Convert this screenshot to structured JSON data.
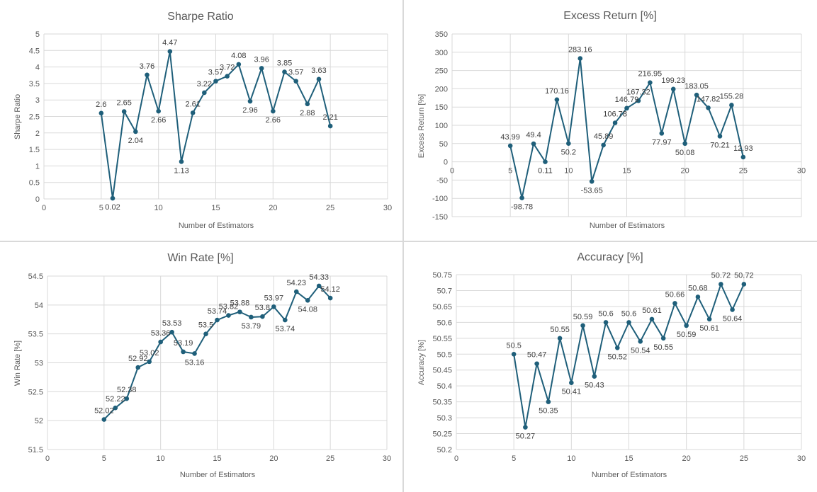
{
  "chart_data": [
    {
      "type": "line",
      "title": "Sharpe Ratio",
      "xlabel": "Number of Estimators",
      "ylabel": "Sharpe Ratio",
      "xlim": [
        0,
        30
      ],
      "ylim": [
        0,
        5
      ],
      "xticks": [
        "0",
        "5",
        "10",
        "15",
        "20",
        "25",
        "30"
      ],
      "yticks": [
        "0",
        "0.5",
        "1",
        "1.5",
        "2",
        "2.5",
        "3",
        "3.5",
        "4",
        "4.5",
        "5"
      ],
      "grid": true,
      "color": "#1f5f7a",
      "series": [
        {
          "x": [
            5,
            6,
            7,
            8,
            9,
            10,
            11,
            12,
            13,
            14,
            15,
            16,
            17,
            18,
            19,
            20,
            21,
            22,
            23,
            24,
            25
          ],
          "values": [
            2.6,
            0.02,
            2.65,
            2.04,
            3.76,
            2.66,
            4.47,
            1.13,
            2.61,
            3.22,
            3.57,
            3.72,
            4.08,
            2.96,
            3.96,
            2.66,
            3.85,
            3.57,
            2.88,
            3.63,
            2.21
          ],
          "labels": [
            "2.6",
            "0.02",
            "2.65",
            "2.04",
            "3.76",
            "2.66",
            "4.47",
            "1.13",
            "2.61",
            "3.22",
            "3.57",
            "3.72",
            "4.08",
            "2.96",
            "3.96",
            "2.66",
            "3.85",
            "3.57",
            "2.88",
            "3.63",
            "2.21"
          ]
        }
      ]
    },
    {
      "type": "line",
      "title": "Excess Return [%]",
      "xlabel": "Number of Estimators",
      "ylabel": "Excess Return [%]",
      "xlim": [
        0,
        30
      ],
      "ylim": [
        -150,
        350
      ],
      "xticks": [
        "0",
        "5",
        "10",
        "15",
        "20",
        "25",
        "30"
      ],
      "yticks": [
        "-150",
        "-100",
        "-50",
        "0",
        "50",
        "100",
        "150",
        "200",
        "250",
        "300",
        "350"
      ],
      "grid": true,
      "color": "#1f5f7a",
      "series": [
        {
          "x": [
            5,
            6,
            7,
            8,
            9,
            10,
            11,
            12,
            13,
            14,
            15,
            16,
            17,
            18,
            19,
            20,
            21,
            22,
            23,
            24,
            25
          ],
          "values": [
            43.99,
            -98.78,
            49.4,
            0.11,
            170.16,
            50.2,
            283.16,
            -53.65,
            45.89,
            106.78,
            146.79,
            167.32,
            216.95,
            77.97,
            199.23,
            50.08,
            183.05,
            147.82,
            70.21,
            155.28,
            12.93
          ],
          "labels": [
            "43.99",
            "-98.78",
            "49.4",
            "0.11",
            "170.16",
            "50.2",
            "283.16",
            "-53.65",
            "45.89",
            "106.78",
            "146.79",
            "167.32",
            "216.95",
            "77.97",
            "199.23",
            "50.08",
            "183.05",
            "147.82",
            "70.21",
            "155.28",
            "12.93"
          ]
        }
      ]
    },
    {
      "type": "line",
      "title": "Win Rate [%]",
      "xlabel": "Number of Estimators",
      "ylabel": "Win Rate [%]",
      "xlim": [
        0,
        30
      ],
      "ylim": [
        51.5,
        54.5
      ],
      "xticks": [
        "0",
        "5",
        "10",
        "15",
        "20",
        "25",
        "30"
      ],
      "yticks": [
        "51.5",
        "52",
        "52.5",
        "53",
        "53.5",
        "54",
        "54.5"
      ],
      "grid": true,
      "color": "#1f5f7a",
      "series": [
        {
          "x": [
            5,
            6,
            7,
            8,
            9,
            10,
            11,
            12,
            13,
            14,
            15,
            16,
            17,
            18,
            19,
            20,
            21,
            22,
            23,
            24,
            25
          ],
          "values": [
            52.02,
            52.22,
            52.38,
            52.92,
            53.02,
            53.36,
            53.53,
            53.19,
            53.16,
            53.5,
            53.74,
            53.82,
            53.88,
            53.79,
            53.8,
            53.97,
            53.74,
            54.23,
            54.08,
            54.33,
            54.12
          ],
          "labels": [
            "52.02",
            "52.22",
            "52.38",
            "52.92",
            "53.02",
            "53.36",
            "53.53",
            "53.19",
            "53.16",
            "53.5",
            "53.74",
            "53.82",
            "53.88",
            "53.79",
            "53.8",
            "53.97",
            "53.74",
            "54.23",
            "54.08",
            "54.33",
            "54.12"
          ]
        }
      ]
    },
    {
      "type": "line",
      "title": "Accuracy [%]",
      "xlabel": "Number of Estimators",
      "ylabel": "Accuracy [%]",
      "xlim": [
        0,
        30
      ],
      "ylim": [
        50.2,
        50.75
      ],
      "xticks": [
        "0",
        "5",
        "10",
        "15",
        "20",
        "25",
        "30"
      ],
      "yticks": [
        "50.2",
        "50.25",
        "50.3",
        "50.35",
        "50.4",
        "50.45",
        "50.5",
        "50.55",
        "50.6",
        "50.65",
        "50.7",
        "50.75"
      ],
      "grid": true,
      "color": "#1f5f7a",
      "series": [
        {
          "x": [
            5,
            6,
            7,
            8,
            9,
            10,
            11,
            12,
            13,
            14,
            15,
            16,
            17,
            18,
            19,
            20,
            21,
            22,
            23,
            24,
            25
          ],
          "values": [
            50.5,
            50.27,
            50.47,
            50.35,
            50.55,
            50.41,
            50.59,
            50.43,
            50.6,
            50.52,
            50.6,
            50.54,
            50.61,
            50.55,
            50.66,
            50.59,
            50.68,
            50.61,
            50.72,
            50.64,
            50.72
          ],
          "labels": [
            "50.5",
            "50.27",
            "50.47",
            "50.35",
            "50.55",
            "50.41",
            "50.59",
            "50.43",
            "50.6",
            "50.52",
            "50.6",
            "50.54",
            "50.61",
            "50.55",
            "50.66",
            "50.59",
            "50.68",
            "50.61",
            "50.72",
            "50.64",
            "50.72"
          ]
        }
      ]
    }
  ]
}
